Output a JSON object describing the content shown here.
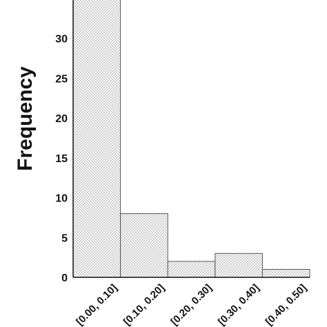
{
  "chart_data": {
    "type": "bar",
    "title": "",
    "xlabel": "",
    "ylabel": "Frequency",
    "categories": [
      "[0.00, 0.10]",
      "[0.10, 0.20]",
      "[0.20, 0.30]",
      "[0.30, 0.40]",
      "[0.40, 0.50]"
    ],
    "values": [
      35,
      8,
      2,
      3,
      1
    ],
    "ylim": [
      0,
      34
    ],
    "yticks": [
      "0",
      "5",
      "10",
      "15",
      "20",
      "25",
      "30"
    ],
    "grid": false,
    "bar_fill": "dotted light gray",
    "colors": {
      "bar_stroke": "#555555",
      "axis": "#111111",
      "dot": "#9a9a9a"
    }
  }
}
